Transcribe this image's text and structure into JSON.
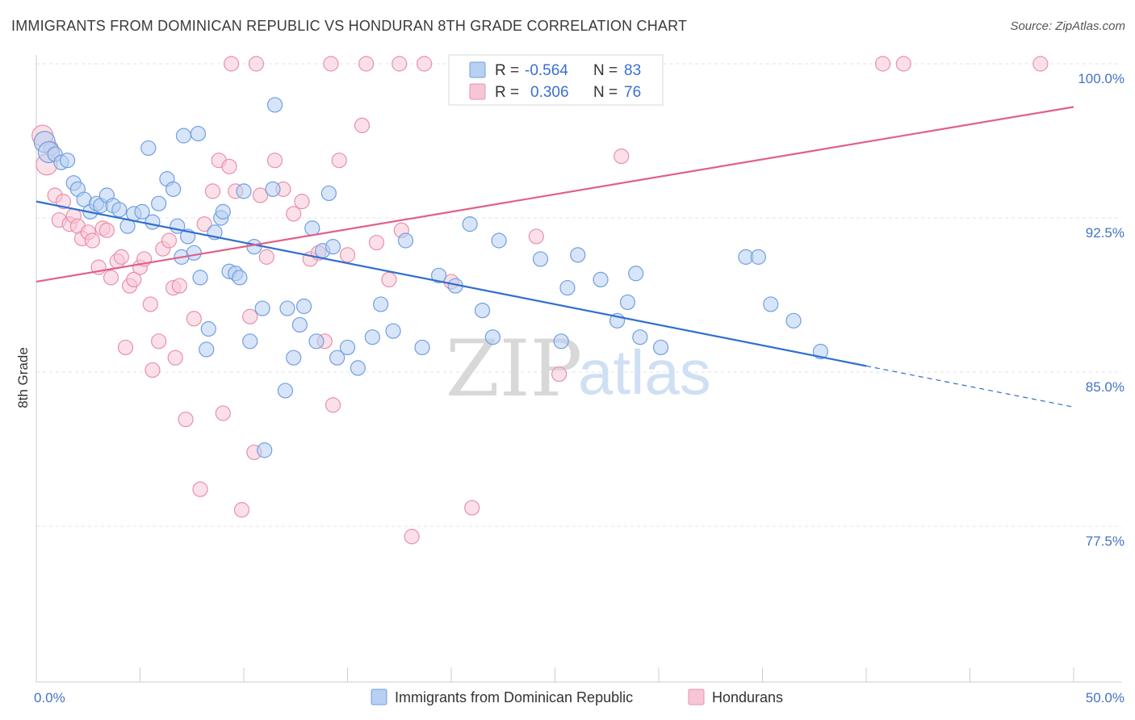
{
  "title": "IMMIGRANTS FROM DOMINICAN REPUBLIC VS HONDURAN 8TH GRADE CORRELATION CHART",
  "source": "Source: ZipAtlas.com",
  "watermark": {
    "zip": "ZIP",
    "atlas": "atlas"
  },
  "colors": {
    "blue_fill": "#b8d0f2",
    "blue_stroke": "#6f9fe0",
    "blue_line": "#2f6fcf",
    "pink_fill": "#f7c6d6",
    "pink_stroke": "#e890ad",
    "pink_line": "#e0608a",
    "grid": "#e3e3e3",
    "axis_label": "#4472c4"
  },
  "legend": {
    "blue": {
      "r_label": "R =",
      "r_value": "-0.564",
      "n_label": "N =",
      "n_value": "83"
    },
    "pink": {
      "r_label": "R =",
      "r_value": "0.306",
      "n_label": "N =",
      "n_value": "76"
    }
  },
  "chart_data": {
    "type": "scatter",
    "title": "IMMIGRANTS FROM DOMINICAN REPUBLIC VS HONDURAN 8TH GRADE CORRELATION CHART",
    "xlabel": "",
    "ylabel": "8th Grade",
    "xlim": [
      0,
      50
    ],
    "ylim": [
      70.0,
      101.5
    ],
    "x_tick_labels": [
      "0.0%",
      "50.0%"
    ],
    "y_ticks": [
      100.0,
      92.5,
      85.0,
      77.5
    ],
    "y_tick_labels": [
      "100.0%",
      "92.5%",
      "85.0%",
      "77.5%"
    ],
    "series": [
      {
        "name": "Immigrants from Dominican Republic",
        "color": "blue",
        "trend": {
          "x0": 0,
          "y0": 93.3,
          "x1": 40,
          "y1": 85.3,
          "dash_x1": 50,
          "dash_y1": 83.3
        },
        "points": [
          [
            0.4,
            96.2
          ],
          [
            0.6,
            95.7
          ],
          [
            0.9,
            95.6
          ],
          [
            1.2,
            95.2
          ],
          [
            1.5,
            95.3
          ],
          [
            1.8,
            94.2
          ],
          [
            2.0,
            93.9
          ],
          [
            2.3,
            93.4
          ],
          [
            2.6,
            92.8
          ],
          [
            2.9,
            93.2
          ],
          [
            3.1,
            93.1
          ],
          [
            3.4,
            93.6
          ],
          [
            3.7,
            93.1
          ],
          [
            4.0,
            92.9
          ],
          [
            4.4,
            92.1
          ],
          [
            4.7,
            92.7
          ],
          [
            5.1,
            92.8
          ],
          [
            5.4,
            95.9
          ],
          [
            5.6,
            92.3
          ],
          [
            5.9,
            93.2
          ],
          [
            6.3,
            94.4
          ],
          [
            6.6,
            93.9
          ],
          [
            6.8,
            92.1
          ],
          [
            7.0,
            90.6
          ],
          [
            7.1,
            96.5
          ],
          [
            7.3,
            91.6
          ],
          [
            7.6,
            90.8
          ],
          [
            7.8,
            96.6
          ],
          [
            7.9,
            89.6
          ],
          [
            8.2,
            86.1
          ],
          [
            8.3,
            87.1
          ],
          [
            8.6,
            91.8
          ],
          [
            8.9,
            92.5
          ],
          [
            9.0,
            92.8
          ],
          [
            9.3,
            89.9
          ],
          [
            9.6,
            89.8
          ],
          [
            9.8,
            89.6
          ],
          [
            10.0,
            93.8
          ],
          [
            10.3,
            86.5
          ],
          [
            10.5,
            91.1
          ],
          [
            10.9,
            88.1
          ],
          [
            11.4,
            93.9
          ],
          [
            11.5,
            98.0
          ],
          [
            12.0,
            84.1
          ],
          [
            12.1,
            88.1
          ],
          [
            12.4,
            85.7
          ],
          [
            12.7,
            87.3
          ],
          [
            12.9,
            88.2
          ],
          [
            13.3,
            92.0
          ],
          [
            13.5,
            86.5
          ],
          [
            13.8,
            90.9
          ],
          [
            14.1,
            93.7
          ],
          [
            14.3,
            91.1
          ],
          [
            14.5,
            85.7
          ],
          [
            15.0,
            86.2
          ],
          [
            15.5,
            85.2
          ],
          [
            16.2,
            86.7
          ],
          [
            16.6,
            88.3
          ],
          [
            17.2,
            87.0
          ],
          [
            17.8,
            91.4
          ],
          [
            18.6,
            86.2
          ],
          [
            19.4,
            89.7
          ],
          [
            20.2,
            89.2
          ],
          [
            20.9,
            92.2
          ],
          [
            21.5,
            88.0
          ],
          [
            22.0,
            86.7
          ],
          [
            22.3,
            91.4
          ],
          [
            24.3,
            90.5
          ],
          [
            25.3,
            86.5
          ],
          [
            25.6,
            89.1
          ],
          [
            26.1,
            90.7
          ],
          [
            27.2,
            89.5
          ],
          [
            28.0,
            87.5
          ],
          [
            28.5,
            88.4
          ],
          [
            28.9,
            89.8
          ],
          [
            29.1,
            86.7
          ],
          [
            30.1,
            86.2
          ],
          [
            34.2,
            90.6
          ],
          [
            34.8,
            90.6
          ],
          [
            35.4,
            88.3
          ],
          [
            36.5,
            87.5
          ],
          [
            37.8,
            86.0
          ],
          [
            11.0,
            81.2
          ]
        ]
      },
      {
        "name": "Hondurans",
        "color": "pink",
        "trend": {
          "x0": 0,
          "y0": 89.4,
          "x1": 50,
          "y1": 97.9
        },
        "points": [
          [
            0.3,
            96.5
          ],
          [
            0.5,
            95.1
          ],
          [
            0.7,
            95.9
          ],
          [
            0.9,
            93.6
          ],
          [
            1.1,
            92.4
          ],
          [
            1.3,
            93.3
          ],
          [
            1.6,
            92.2
          ],
          [
            1.8,
            92.6
          ],
          [
            2.0,
            92.1
          ],
          [
            2.2,
            91.5
          ],
          [
            2.5,
            91.8
          ],
          [
            2.7,
            91.4
          ],
          [
            3.0,
            90.1
          ],
          [
            3.2,
            92.0
          ],
          [
            3.4,
            91.9
          ],
          [
            3.6,
            89.6
          ],
          [
            3.9,
            90.4
          ],
          [
            4.1,
            90.6
          ],
          [
            4.3,
            86.2
          ],
          [
            4.5,
            89.2
          ],
          [
            4.7,
            89.5
          ],
          [
            5.0,
            90.1
          ],
          [
            5.2,
            90.5
          ],
          [
            5.5,
            88.3
          ],
          [
            5.6,
            85.1
          ],
          [
            5.9,
            86.5
          ],
          [
            6.1,
            91.0
          ],
          [
            6.4,
            91.4
          ],
          [
            6.6,
            89.1
          ],
          [
            6.7,
            85.7
          ],
          [
            6.9,
            89.2
          ],
          [
            7.2,
            82.7
          ],
          [
            7.6,
            87.6
          ],
          [
            7.9,
            79.3
          ],
          [
            8.1,
            92.2
          ],
          [
            8.5,
            93.8
          ],
          [
            8.8,
            95.3
          ],
          [
            9.0,
            83.0
          ],
          [
            9.3,
            95.0
          ],
          [
            9.6,
            93.8
          ],
          [
            9.9,
            78.3
          ],
          [
            10.3,
            87.7
          ],
          [
            10.5,
            81.1
          ],
          [
            10.8,
            93.6
          ],
          [
            11.1,
            90.6
          ],
          [
            11.5,
            95.3
          ],
          [
            11.9,
            93.9
          ],
          [
            12.4,
            92.7
          ],
          [
            12.8,
            93.3
          ],
          [
            13.2,
            90.5
          ],
          [
            13.6,
            90.8
          ],
          [
            13.9,
            86.5
          ],
          [
            14.3,
            83.4
          ],
          [
            14.6,
            95.3
          ],
          [
            15.0,
            90.7
          ],
          [
            15.7,
            97.0
          ],
          [
            16.4,
            91.3
          ],
          [
            17.0,
            89.5
          ],
          [
            17.6,
            91.9
          ],
          [
            18.1,
            77.0
          ],
          [
            20.0,
            89.4
          ],
          [
            21.0,
            78.4
          ],
          [
            24.1,
            91.6
          ],
          [
            25.2,
            84.9
          ],
          [
            28.2,
            95.5
          ],
          [
            9.4,
            100.0
          ],
          [
            10.6,
            100.0
          ],
          [
            14.2,
            100.0
          ],
          [
            15.9,
            100.0
          ],
          [
            17.5,
            100.0
          ],
          [
            18.7,
            100.0
          ],
          [
            28.0,
            100.0
          ],
          [
            29.0,
            100.0
          ],
          [
            40.8,
            100.0
          ],
          [
            41.8,
            100.0
          ],
          [
            48.4,
            100.0
          ]
        ]
      }
    ],
    "legend_entries": [
      "Immigrants from Dominican Republic",
      "Hondurans"
    ]
  }
}
